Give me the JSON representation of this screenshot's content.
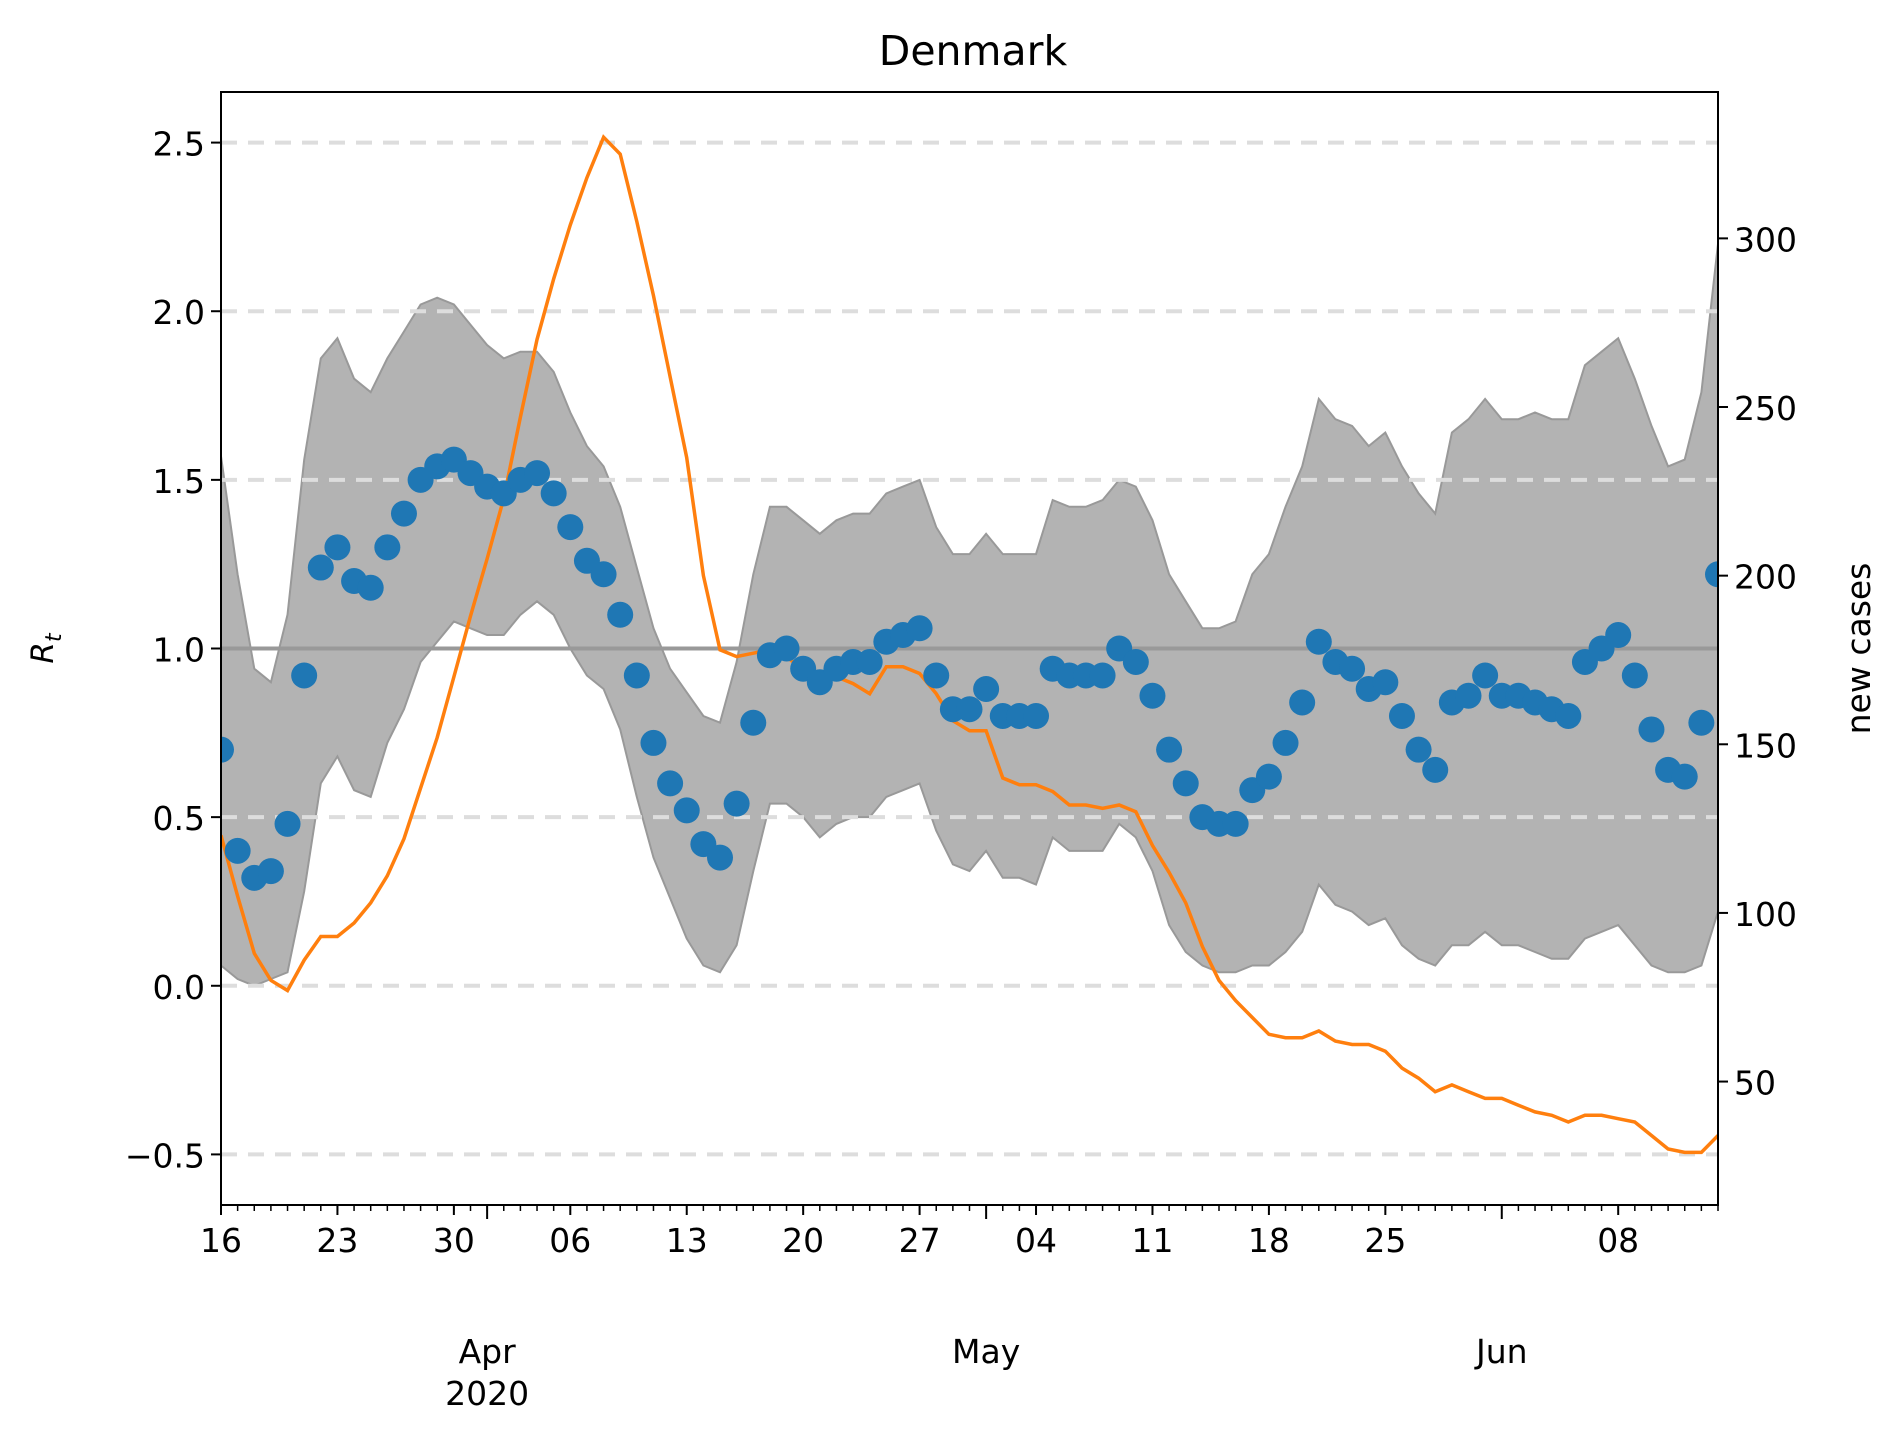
{
  "chart_data": {
    "type": "line",
    "title": "Denmark",
    "ylabel_left": "R",
    "ylabel_left_sub": "t",
    "ylabel_right": "new cases",
    "start_date": "2020-03-16",
    "end_date": "2020-06-14",
    "xlim_days": [
      0,
      90
    ],
    "ylim_left": [
      -0.65,
      2.65
    ],
    "ylim_right": [
      13.4,
      343.4
    ],
    "y_ticks_left": [
      -0.5,
      0.0,
      0.5,
      1.0,
      1.5,
      2.0,
      2.5
    ],
    "y_tick_labels_left": [
      "−0.5",
      "0.0",
      "0.5",
      "1.0",
      "1.5",
      "2.0",
      "2.5"
    ],
    "y_ticks_right": [
      50,
      100,
      150,
      200,
      250,
      300
    ],
    "y_tick_labels_right": [
      "50",
      "100",
      "150",
      "200",
      "250",
      "300"
    ],
    "x_ticks": [
      {
        "day": 0,
        "label": "16"
      },
      {
        "day": 7,
        "label": "23"
      },
      {
        "day": 14,
        "label": "30"
      },
      {
        "day": 21,
        "label": "06"
      },
      {
        "day": 28,
        "label": "13"
      },
      {
        "day": 35,
        "label": "20"
      },
      {
        "day": 42,
        "label": "27"
      },
      {
        "day": 49,
        "label": "04"
      },
      {
        "day": 56,
        "label": "11"
      },
      {
        "day": 63,
        "label": "18"
      },
      {
        "day": 70,
        "label": "25"
      },
      {
        "day": 84,
        "label": "08"
      }
    ],
    "month_labels": [
      {
        "day": 16,
        "label": "Apr",
        "year": "2020"
      },
      {
        "day": 46,
        "label": "May",
        "year": ""
      },
      {
        "day": 77,
        "label": "Jun",
        "year": ""
      }
    ],
    "reference_line": 1.0,
    "dashed_grid_left": [
      -0.5,
      0.0,
      0.5,
      1.5,
      2.0,
      2.5
    ],
    "colors": {
      "rt_points": "#1f77b4",
      "new_cases": "#ff7f0e",
      "band_fill": "#b3b3b3",
      "band_edge": "#999999",
      "reference": "#999999",
      "grid": "#dddddd"
    },
    "series": [
      {
        "name": "Rt",
        "kind": "scatter",
        "x": [
          0,
          1,
          2,
          3,
          4,
          5,
          6,
          7,
          8,
          9,
          10,
          11,
          12,
          13,
          14,
          15,
          16,
          17,
          18,
          19,
          20,
          21,
          22,
          23,
          24,
          25,
          26,
          27,
          28,
          29,
          30,
          31,
          32,
          33,
          34,
          35,
          36,
          37,
          38,
          39,
          40,
          41,
          42,
          43,
          44,
          45,
          46,
          47,
          48,
          49,
          50,
          51,
          52,
          53,
          54,
          55,
          56,
          57,
          58,
          59,
          60,
          61,
          62,
          63,
          64,
          65,
          66,
          67,
          68,
          69,
          70,
          71,
          72,
          73,
          74,
          75,
          76,
          77,
          78,
          79,
          80,
          81,
          82,
          83,
          84,
          85,
          86,
          87,
          88,
          89,
          90
        ],
        "y": [
          0.7,
          0.4,
          0.32,
          0.34,
          0.48,
          0.92,
          1.24,
          1.3,
          1.2,
          1.18,
          1.3,
          1.4,
          1.5,
          1.54,
          1.56,
          1.52,
          1.48,
          1.46,
          1.5,
          1.52,
          1.46,
          1.36,
          1.26,
          1.22,
          1.1,
          0.92,
          0.72,
          0.6,
          0.52,
          0.42,
          0.38,
          0.54,
          0.78,
          0.98,
          1.0,
          0.94,
          0.9,
          0.94,
          0.96,
          0.96,
          1.02,
          1.04,
          1.06,
          0.92,
          0.82,
          0.82,
          0.88,
          0.8,
          0.8,
          0.8,
          0.94,
          0.92,
          0.92,
          0.92,
          1.0,
          0.96,
          0.86,
          0.7,
          0.6,
          0.5,
          0.48,
          0.48,
          0.58,
          0.62,
          0.72,
          0.84,
          1.02,
          0.96,
          0.94,
          0.88,
          0.9,
          0.8,
          0.7,
          0.64,
          0.84,
          0.86,
          0.92,
          0.86,
          0.86,
          0.84,
          0.82,
          0.8,
          0.96,
          1.0,
          1.04,
          0.92,
          0.76,
          0.64,
          0.62,
          0.78,
          1.22
        ]
      },
      {
        "name": "upper",
        "kind": "band-upper",
        "x": [
          0,
          1,
          2,
          3,
          4,
          5,
          6,
          7,
          8,
          9,
          10,
          11,
          12,
          13,
          14,
          15,
          16,
          17,
          18,
          19,
          20,
          21,
          22,
          23,
          24,
          25,
          26,
          27,
          28,
          29,
          30,
          31,
          32,
          33,
          34,
          35,
          36,
          37,
          38,
          39,
          40,
          41,
          42,
          43,
          44,
          45,
          46,
          47,
          48,
          49,
          50,
          51,
          52,
          53,
          54,
          55,
          56,
          57,
          58,
          59,
          60,
          61,
          62,
          63,
          64,
          65,
          66,
          67,
          68,
          69,
          70,
          71,
          72,
          73,
          74,
          75,
          76,
          77,
          78,
          79,
          80,
          81,
          82,
          83,
          84,
          85,
          86,
          87,
          88,
          89,
          90
        ],
        "y": [
          1.57,
          1.22,
          0.94,
          0.9,
          1.1,
          1.56,
          1.86,
          1.92,
          1.8,
          1.76,
          1.86,
          1.94,
          2.02,
          2.04,
          2.02,
          1.96,
          1.9,
          1.86,
          1.88,
          1.88,
          1.82,
          1.7,
          1.6,
          1.54,
          1.42,
          1.24,
          1.06,
          0.94,
          0.87,
          0.8,
          0.78,
          0.96,
          1.22,
          1.42,
          1.42,
          1.38,
          1.34,
          1.38,
          1.4,
          1.4,
          1.46,
          1.48,
          1.5,
          1.36,
          1.28,
          1.28,
          1.34,
          1.28,
          1.28,
          1.28,
          1.44,
          1.42,
          1.42,
          1.44,
          1.5,
          1.48,
          1.38,
          1.22,
          1.14,
          1.06,
          1.06,
          1.08,
          1.22,
          1.28,
          1.42,
          1.54,
          1.74,
          1.68,
          1.66,
          1.6,
          1.64,
          1.54,
          1.46,
          1.4,
          1.64,
          1.68,
          1.74,
          1.68,
          1.68,
          1.7,
          1.68,
          1.68,
          1.84,
          1.88,
          1.92,
          1.8,
          1.66,
          1.54,
          1.56,
          1.76,
          2.2
        ]
      },
      {
        "name": "lower",
        "kind": "band-lower",
        "x": [
          0,
          1,
          2,
          3,
          4,
          5,
          6,
          7,
          8,
          9,
          10,
          11,
          12,
          13,
          14,
          15,
          16,
          17,
          18,
          19,
          20,
          21,
          22,
          23,
          24,
          25,
          26,
          27,
          28,
          29,
          30,
          31,
          32,
          33,
          34,
          35,
          36,
          37,
          38,
          39,
          40,
          41,
          42,
          43,
          44,
          45,
          46,
          47,
          48,
          49,
          50,
          51,
          52,
          53,
          54,
          55,
          56,
          57,
          58,
          59,
          60,
          61,
          62,
          63,
          64,
          65,
          66,
          67,
          68,
          69,
          70,
          71,
          72,
          73,
          74,
          75,
          76,
          77,
          78,
          79,
          80,
          81,
          82,
          83,
          84,
          85,
          86,
          87,
          88,
          89,
          90
        ],
        "y": [
          0.06,
          0.02,
          0.0,
          0.02,
          0.04,
          0.28,
          0.6,
          0.68,
          0.58,
          0.56,
          0.72,
          0.82,
          0.96,
          1.02,
          1.08,
          1.06,
          1.04,
          1.04,
          1.1,
          1.14,
          1.1,
          1.0,
          0.92,
          0.88,
          0.76,
          0.56,
          0.38,
          0.26,
          0.14,
          0.06,
          0.04,
          0.12,
          0.34,
          0.54,
          0.54,
          0.5,
          0.44,
          0.48,
          0.5,
          0.5,
          0.56,
          0.58,
          0.6,
          0.46,
          0.36,
          0.34,
          0.4,
          0.32,
          0.32,
          0.3,
          0.44,
          0.4,
          0.4,
          0.4,
          0.48,
          0.44,
          0.34,
          0.18,
          0.1,
          0.06,
          0.04,
          0.04,
          0.06,
          0.06,
          0.1,
          0.16,
          0.3,
          0.24,
          0.22,
          0.18,
          0.2,
          0.12,
          0.08,
          0.06,
          0.12,
          0.12,
          0.16,
          0.12,
          0.12,
          0.1,
          0.08,
          0.08,
          0.14,
          0.16,
          0.18,
          0.12,
          0.06,
          0.04,
          0.04,
          0.06,
          0.22
        ]
      },
      {
        "name": "new cases",
        "kind": "line",
        "axis": "right",
        "x": [
          0,
          1,
          2,
          3,
          4,
          5,
          6,
          7,
          8,
          9,
          10,
          11,
          12,
          13,
          14,
          15,
          16,
          17,
          18,
          19,
          20,
          21,
          22,
          23,
          24,
          25,
          26,
          27,
          28,
          29,
          30,
          31,
          32,
          33,
          34,
          35,
          36,
          37,
          38,
          39,
          40,
          41,
          42,
          43,
          44,
          45,
          46,
          47,
          48,
          49,
          50,
          51,
          52,
          53,
          54,
          55,
          56,
          57,
          58,
          59,
          60,
          61,
          62,
          63,
          64,
          65,
          66,
          67,
          68,
          69,
          70,
          71,
          72,
          73,
          74,
          75,
          76,
          77,
          78,
          79,
          80,
          81,
          82,
          83,
          84,
          85,
          86,
          87,
          88,
          89,
          90
        ],
        "y": [
          123,
          105,
          88,
          80,
          77,
          86,
          93,
          93,
          97,
          103,
          111,
          122,
          137,
          152,
          170,
          188,
          205,
          223,
          247,
          270,
          288,
          304,
          318,
          330,
          325,
          305,
          283,
          259,
          235,
          200,
          178,
          176,
          177,
          178,
          176,
          172,
          168,
          170,
          168,
          165,
          173,
          173,
          171,
          165,
          157,
          154,
          154,
          140,
          138,
          138,
          136,
          132,
          132,
          131,
          132,
          130,
          120,
          112,
          103,
          90,
          80,
          74,
          69,
          64,
          63,
          63,
          65,
          62,
          61,
          61,
          59,
          54,
          51,
          47,
          49,
          47,
          45,
          45,
          43,
          41,
          40,
          38,
          40,
          40,
          39,
          38,
          34,
          30,
          29,
          29,
          34
        ]
      }
    ]
  }
}
